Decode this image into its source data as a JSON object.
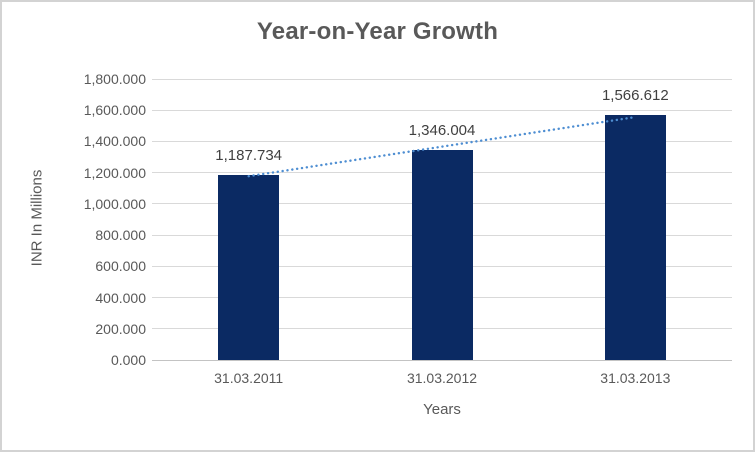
{
  "window": {
    "background": "#ffffff",
    "border_color": "#d3d3d3"
  },
  "chart_data": {
    "type": "bar",
    "title": "Year-on-Year Growth",
    "xlabel": "Years",
    "ylabel": "INR In Millions",
    "categories": [
      "31.03.2011",
      "31.03.2012",
      "31.03.2013"
    ],
    "values": [
      1187.734,
      1346.004,
      1566.612
    ],
    "data_labels": [
      "1,187.734",
      "1,346.004",
      "1,566.612"
    ],
    "ylim": [
      0,
      1800
    ],
    "ytick_step": 200,
    "ytick_labels": [
      "0.000",
      "200.000",
      "400.000",
      "600.000",
      "800.000",
      "1,000.000",
      "1,200.000",
      "1,400.000",
      "1,600.000",
      "1,800.000"
    ],
    "grid": true,
    "legend_position": "none",
    "trendline": {
      "type": "linear",
      "style": "dotted",
      "color": "#4e8ed2"
    },
    "colors": {
      "bar": "#0b2a63",
      "gridline": "#d9d9d9",
      "axis_line": "#c3c3c3",
      "title_text": "#595959",
      "tick_text": "#595959",
      "data_label_text": "#404040"
    }
  }
}
